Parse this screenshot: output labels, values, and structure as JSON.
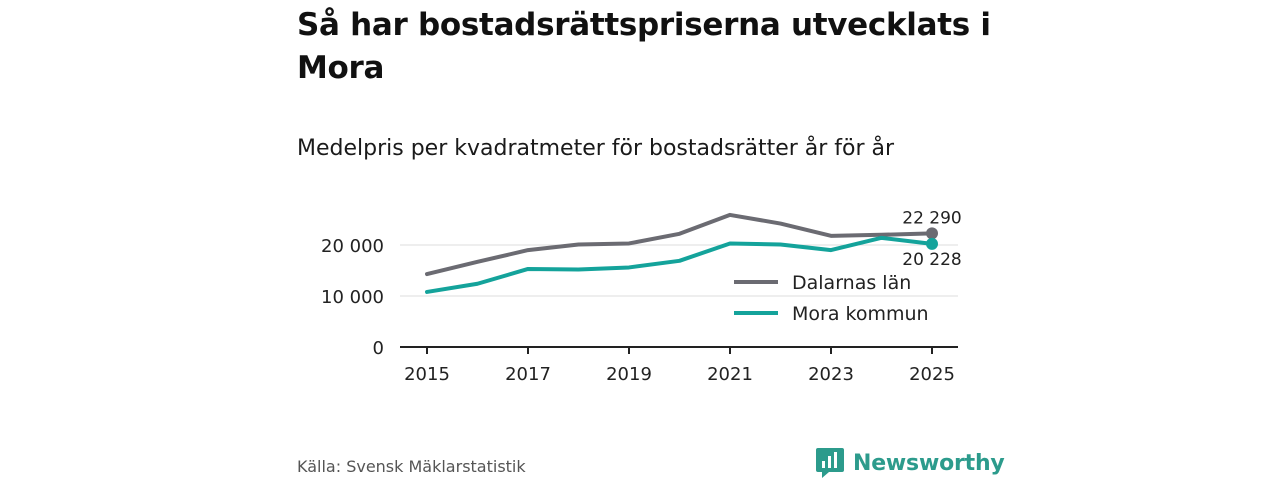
{
  "header": {
    "title": "Så har bostadsrättspriserna utvecklats i Mora",
    "subtitle": "Medelpris per kvadratmeter för bostadsrätter år för år"
  },
  "footer": {
    "source": "Källa: Svensk Mäklarstatistik",
    "brand": "Newsworthy",
    "brand_color": "#2c9b8c"
  },
  "chart_data": {
    "type": "line",
    "title": "Så har bostadsrättspriserna utvecklats i Mora",
    "subtitle": "Medelpris per kvadratmeter för bostadsrätter år för år",
    "xlabel": "",
    "ylabel": "",
    "x": [
      2015,
      2016,
      2017,
      2018,
      2019,
      2020,
      2021,
      2022,
      2023,
      2024,
      2025
    ],
    "xticks": [
      "2015",
      "2017",
      "2019",
      "2021",
      "2023",
      "2025"
    ],
    "yticks": [
      {
        "value": 0,
        "label": "0"
      },
      {
        "value": 10000,
        "label": "10 000"
      },
      {
        "value": 20000,
        "label": "20 000"
      }
    ],
    "ylim": [
      0,
      25000
    ],
    "grid": true,
    "legend_position": "bottom-right",
    "series": [
      {
        "name": "Dalarnas län",
        "color": "#6b6b72",
        "values": [
          14300,
          16700,
          19000,
          20100,
          20300,
          22200,
          25900,
          24200,
          21800,
          22000,
          22290
        ],
        "end_label": "22 290"
      },
      {
        "name": "Mora kommun",
        "color": "#14a39b",
        "values": [
          10800,
          12400,
          15300,
          15200,
          15600,
          16900,
          20300,
          20100,
          19000,
          21400,
          20228
        ],
        "end_label": "20 228"
      }
    ]
  }
}
